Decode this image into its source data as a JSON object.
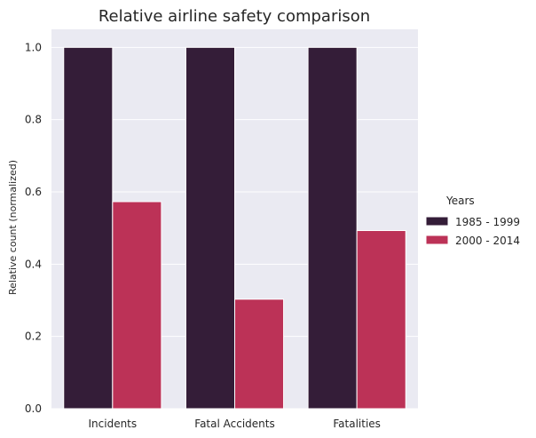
{
  "chart_data": {
    "type": "bar",
    "title": "Relative airline safety comparison",
    "xlabel": "",
    "ylabel": "Relative count (normalized)",
    "ylim": [
      0,
      1.05
    ],
    "yticks": [
      "0.0",
      "0.2",
      "0.4",
      "0.6",
      "0.8",
      "1.0"
    ],
    "grid": true,
    "legend_title": "Years",
    "legend_position": "right",
    "categories": [
      "Incidents",
      "Fatal Accidents",
      "Fatalities"
    ],
    "series": [
      {
        "name": "1985 - 1999",
        "color": "#341d38",
        "values": [
          1.0,
          1.0,
          1.0
        ]
      },
      {
        "name": "2000 - 2014",
        "color": "#bc3257",
        "values": [
          0.573,
          0.303,
          0.493
        ]
      }
    ],
    "background_color": "#eaeaf2"
  }
}
